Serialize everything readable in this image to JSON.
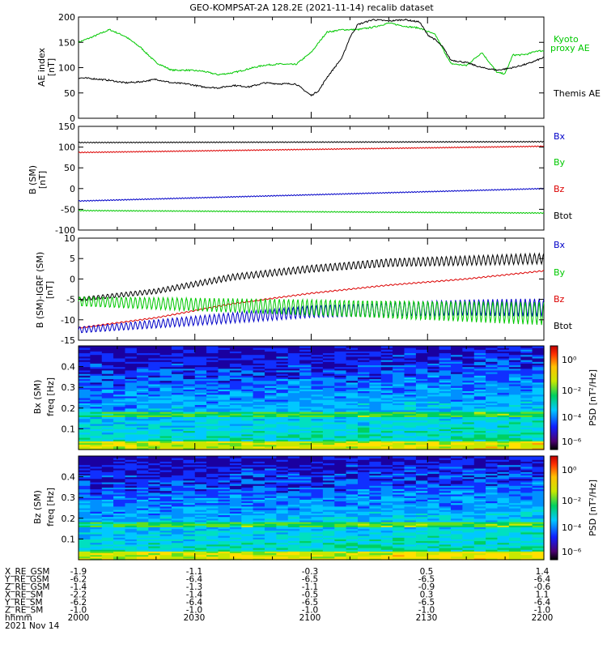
{
  "title": "GEO-KOMPSAT-2A 128.2E (2021-11-14) recalib dataset",
  "panel_labels": {
    "ae": {
      "ylabel": "AE index",
      "unit": "[nT]"
    },
    "b": {
      "ylabel": "B (SM)",
      "unit": "[nT]"
    },
    "db": {
      "ylabel": "B (SM)-IGRF (SM)",
      "unit": "[nT]"
    },
    "bx_spec": {
      "ylabel": "Bx (SM)",
      "flabel": "freq [Hz]"
    },
    "bz_spec": {
      "ylabel": "Bz (SM)",
      "flabel": "freq [Hz]"
    },
    "psd": {
      "label": "PSD [nT²/Hz]",
      "ticks": [
        "10⁰",
        "10⁻²",
        "10⁻⁴",
        "10⁻⁶"
      ]
    }
  },
  "legend": {
    "ae": [
      "Kyoto",
      "proxy AE",
      "Themis AE"
    ],
    "b": [
      "Bx",
      "By",
      "Bz",
      "Btot"
    ],
    "db": [
      "Bx",
      "By",
      "Bz",
      "Btot"
    ]
  },
  "colors": {
    "blue": "#0000c8",
    "green": "#00c800",
    "red": "#dc0000",
    "black": "#000000"
  },
  "ephemeris": {
    "rows": [
      {
        "label": "X_RE_GSM",
        "values": [
          "-1.9",
          "-1.1",
          "-0.3",
          "0.5",
          "1.4"
        ]
      },
      {
        "label": "Y_RE_GSM",
        "values": [
          "-6.2",
          "-6.4",
          "-6.5",
          "-6.5",
          "-6.4"
        ]
      },
      {
        "label": "Z_RE_GSM",
        "values": [
          "-1.4",
          "-1.3",
          "-1.1",
          "-0.9",
          "-0.6"
        ]
      },
      {
        "label": "X_RE_SM",
        "values": [
          "-2.2",
          "-1.4",
          "-0.5",
          "0.3",
          "1.1"
        ]
      },
      {
        "label": "Y_RE_SM",
        "values": [
          "-6.2",
          "-6.4",
          "-6.5",
          "-6.5",
          "-6.4"
        ]
      },
      {
        "label": "Z_RE_SM",
        "values": [
          "-1.0",
          "-1.0",
          "-1.0",
          "-1.0",
          "-1.0"
        ]
      },
      {
        "label": "hhmm",
        "values": [
          "2000",
          "2030",
          "2100",
          "2130",
          "2200"
        ]
      }
    ],
    "date": "2021 Nov 14"
  },
  "chart_data": [
    {
      "type": "line",
      "panel": "ae",
      "ylim": [
        0,
        200
      ],
      "yticks": [
        0,
        50,
        100,
        150,
        200
      ],
      "x_minutes": [
        0,
        120
      ],
      "series": [
        {
          "name": "Kyoto proxy AE",
          "color": "#00c800",
          "x": [
            0,
            4,
            8,
            12,
            16,
            20,
            24,
            28,
            32,
            36,
            40,
            44,
            48,
            52,
            56,
            60,
            64,
            68,
            72,
            76,
            80,
            84,
            88,
            92,
            96,
            100,
            104,
            108,
            110,
            112,
            114,
            116,
            118,
            120
          ],
          "y": [
            150,
            162,
            175,
            162,
            140,
            110,
            95,
            95,
            93,
            86,
            90,
            98,
            105,
            107,
            106,
            130,
            170,
            175,
            175,
            180,
            188,
            182,
            178,
            165,
            108,
            104,
            130,
            90,
            88,
            125,
            125,
            127,
            133,
            133
          ]
        },
        {
          "name": "Themis AE",
          "color": "#000000",
          "x": [
            0,
            4,
            8,
            12,
            16,
            20,
            24,
            28,
            32,
            36,
            40,
            44,
            48,
            52,
            56,
            60,
            62,
            64,
            66,
            68,
            70,
            72,
            76,
            80,
            84,
            88,
            90,
            92,
            94,
            96,
            100,
            104,
            108,
            112,
            116,
            120
          ],
          "y": [
            80,
            78,
            75,
            70,
            72,
            77,
            70,
            68,
            62,
            60,
            65,
            62,
            70,
            68,
            68,
            45,
            55,
            80,
            100,
            120,
            160,
            185,
            195,
            192,
            195,
            190,
            165,
            155,
            140,
            115,
            110,
            100,
            95,
            100,
            108,
            120
          ]
        }
      ]
    },
    {
      "type": "line",
      "panel": "b",
      "ylim": [
        -100,
        150
      ],
      "yticks": [
        -100,
        -50,
        0,
        50,
        100,
        150
      ],
      "series": [
        {
          "name": "Btot",
          "color": "#000000",
          "x": [
            0,
            120
          ],
          "y": [
            111,
            113
          ]
        },
        {
          "name": "Bz",
          "color": "#dc0000",
          "x": [
            0,
            120
          ],
          "y": [
            87,
            102
          ]
        },
        {
          "name": "Bx",
          "color": "#0000c8",
          "x": [
            0,
            120
          ],
          "y": [
            -30,
            0
          ]
        },
        {
          "name": "By",
          "color": "#00c800",
          "x": [
            0,
            120
          ],
          "y": [
            -53,
            -59
          ]
        }
      ]
    },
    {
      "type": "line",
      "panel": "db",
      "ylim": [
        -15,
        10
      ],
      "yticks": [
        -15,
        -10,
        -5,
        0,
        5,
        10
      ],
      "series": [
        {
          "name": "Btot",
          "color": "#000000",
          "x": [
            0,
            20,
            40,
            60,
            80,
            100,
            120
          ],
          "y": [
            -5,
            -3,
            0.5,
            2.5,
            4,
            4.5,
            5
          ]
        },
        {
          "name": "Bz",
          "color": "#dc0000",
          "x": [
            0,
            20,
            40,
            60,
            80,
            100,
            120
          ],
          "y": [
            -12,
            -9.5,
            -6,
            -3.5,
            -1.5,
            0,
            2
          ]
        },
        {
          "name": "Bx",
          "color": "#0000c8",
          "x": [
            0,
            20,
            40,
            60,
            80,
            100,
            120
          ],
          "y": [
            -12.5,
            -11,
            -9.5,
            -8,
            -7.5,
            -7,
            -7
          ]
        },
        {
          "name": "By",
          "color": "#00c800",
          "x": [
            0,
            20,
            40,
            60,
            80,
            100,
            120
          ],
          "y": [
            -5.5,
            -6,
            -6.5,
            -7,
            -7.5,
            -8,
            -8.5
          ]
        }
      ]
    },
    {
      "type": "heatmap",
      "panel": "bx_spec",
      "ylim": [
        0,
        0.5
      ],
      "yticks": [
        "0.1",
        "0.2",
        "0.3",
        "0.4"
      ]
    },
    {
      "type": "heatmap",
      "panel": "bz_spec",
      "ylim": [
        0,
        0.5
      ],
      "yticks": [
        "0.1",
        "0.2",
        "0.3",
        "0.4"
      ]
    }
  ]
}
